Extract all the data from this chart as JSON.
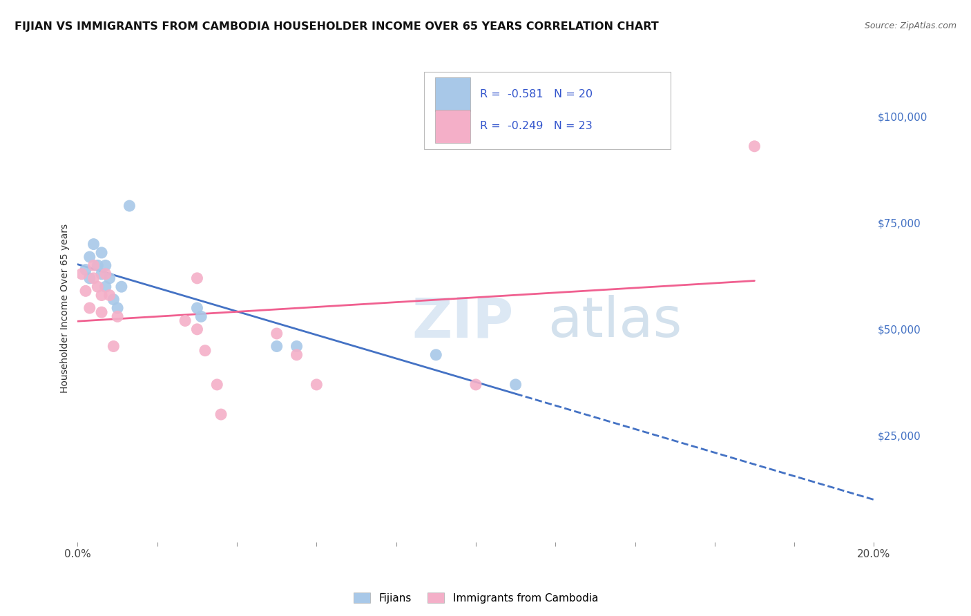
{
  "title": "FIJIAN VS IMMIGRANTS FROM CAMBODIA HOUSEHOLDER INCOME OVER 65 YEARS CORRELATION CHART",
  "source": "Source: ZipAtlas.com",
  "ylabel": "Householder Income Over 65 years",
  "xlim": [
    0.0,
    0.2
  ],
  "ylim": [
    0,
    110000
  ],
  "ytick_values": [
    25000,
    50000,
    75000,
    100000
  ],
  "fijian_R": "-0.581",
  "fijian_N": "20",
  "cambodia_R": "-0.249",
  "cambodia_N": "23",
  "fijian_color": "#a8c8e8",
  "cambodia_color": "#f4afc8",
  "fijian_line_color": "#4472c4",
  "cambodia_line_color": "#f06090",
  "background_color": "#ffffff",
  "fijian_x": [
    0.002,
    0.003,
    0.003,
    0.004,
    0.005,
    0.006,
    0.006,
    0.007,
    0.007,
    0.008,
    0.009,
    0.01,
    0.011,
    0.013,
    0.03,
    0.031,
    0.05,
    0.055,
    0.09,
    0.11
  ],
  "fijian_y": [
    64000,
    67000,
    62000,
    70000,
    65000,
    68000,
    63000,
    65000,
    60000,
    62000,
    57000,
    55000,
    60000,
    79000,
    55000,
    53000,
    46000,
    46000,
    44000,
    37000
  ],
  "cambodia_x": [
    0.001,
    0.002,
    0.003,
    0.004,
    0.004,
    0.005,
    0.006,
    0.006,
    0.007,
    0.008,
    0.009,
    0.01,
    0.027,
    0.03,
    0.03,
    0.032,
    0.035,
    0.036,
    0.05,
    0.055,
    0.06,
    0.1,
    0.17
  ],
  "cambodia_y": [
    63000,
    59000,
    55000,
    65000,
    62000,
    60000,
    58000,
    54000,
    63000,
    58000,
    46000,
    53000,
    52000,
    62000,
    50000,
    45000,
    37000,
    30000,
    49000,
    44000,
    37000,
    37000,
    93000
  ]
}
